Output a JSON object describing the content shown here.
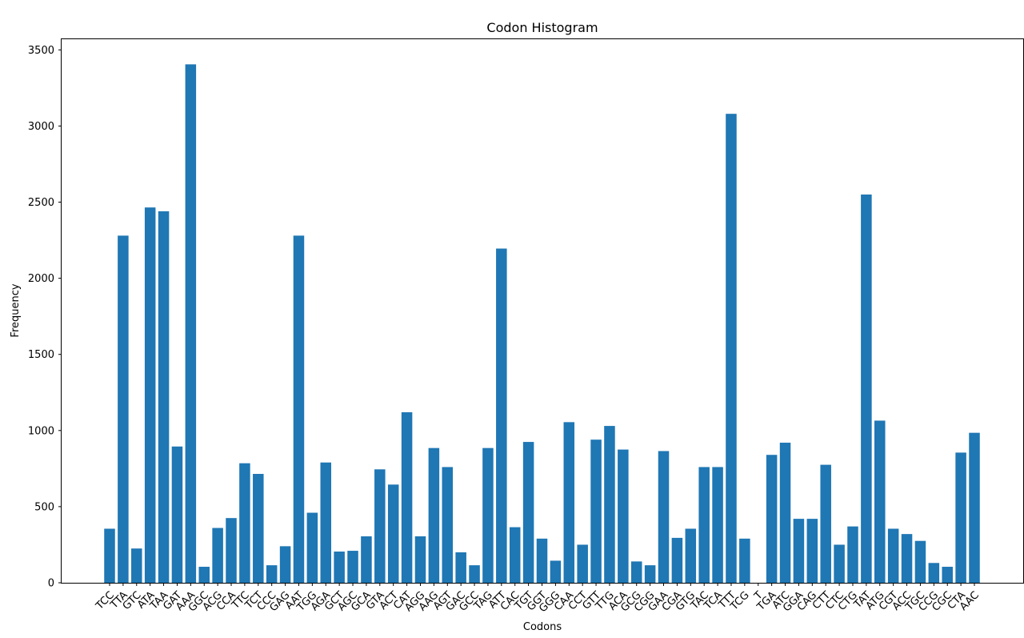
{
  "chart_data": {
    "type": "bar",
    "title": "Codon Histogram",
    "xlabel": "Codons",
    "ylabel": "Frequency",
    "ylim": [
      0,
      3570
    ],
    "yticks": [
      0,
      500,
      1000,
      1500,
      2000,
      2500,
      3000,
      3500
    ],
    "ytick_labels": [
      "0",
      "500",
      "1000",
      "1500",
      "2000",
      "2500",
      "3000",
      "3500"
    ],
    "bar_color": "#1f77b4",
    "categories": [
      "TCC",
      "TTA",
      "GTC",
      "ATA",
      "TAA",
      "GAT",
      "AAA",
      "GGC",
      "ACG",
      "CCA",
      "TTC",
      "TCT",
      "CCC",
      "GAG",
      "AAT",
      "TGG",
      "AGA",
      "GCT",
      "AGC",
      "GCA",
      "GTA",
      "ACT",
      "CAT",
      "AGG",
      "AAG",
      "AGT",
      "GAC",
      "GCC",
      "TAG",
      "ATT",
      "CAC",
      "TGT",
      "GGT",
      "GGG",
      "CAA",
      "CCT",
      "GTT",
      "TTG",
      "ACA",
      "GCG",
      "CGG",
      "GAA",
      "CGA",
      "GTG",
      "TAC",
      "TCA",
      "TTT",
      "TCG",
      "T",
      "TGA",
      "ATC",
      "GGA",
      "CAG",
      "CTT",
      "CTC",
      "CTG",
      "TAT",
      "ATG",
      "CGT",
      "ACC",
      "TGC",
      "CCG",
      "CGC",
      "CTA",
      "AAC"
    ],
    "values": [
      355,
      2280,
      225,
      2465,
      2440,
      895,
      3405,
      105,
      360,
      425,
      785,
      715,
      115,
      240,
      2280,
      460,
      790,
      205,
      210,
      305,
      745,
      645,
      1120,
      305,
      885,
      760,
      200,
      115,
      885,
      2195,
      365,
      925,
      290,
      145,
      1055,
      250,
      940,
      1030,
      875,
      140,
      115,
      865,
      295,
      355,
      760,
      760,
      3080,
      290,
      0,
      840,
      920,
      420,
      420,
      775,
      250,
      370,
      2550,
      1065,
      355,
      320,
      275,
      130,
      105,
      855,
      985
    ]
  }
}
